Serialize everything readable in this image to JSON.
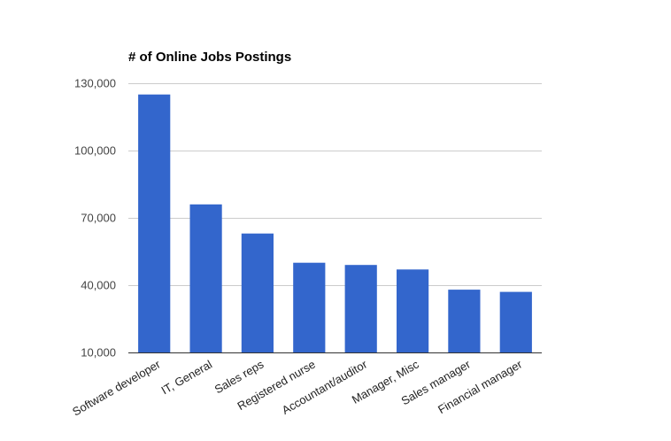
{
  "chart_data": {
    "type": "bar",
    "title": "# of Online Jobs Postings",
    "xlabel": "",
    "ylabel": "",
    "categories": [
      "Software developer",
      "IT, General",
      "Sales reps",
      "Registered nurse",
      "Accountant/auditor",
      "Manager, Misc",
      "Sales manager",
      "Financial manager"
    ],
    "values": [
      125000,
      76000,
      63000,
      50000,
      49000,
      47000,
      38000,
      37000
    ],
    "ylim": [
      10000,
      130000
    ],
    "yticks": [
      10000,
      40000,
      70000,
      100000,
      130000
    ],
    "ytick_labels": [
      "10,000",
      "40,000",
      "70,000",
      "100,000",
      "130,000"
    ],
    "grid": true,
    "bar_color": "#3366cc"
  }
}
